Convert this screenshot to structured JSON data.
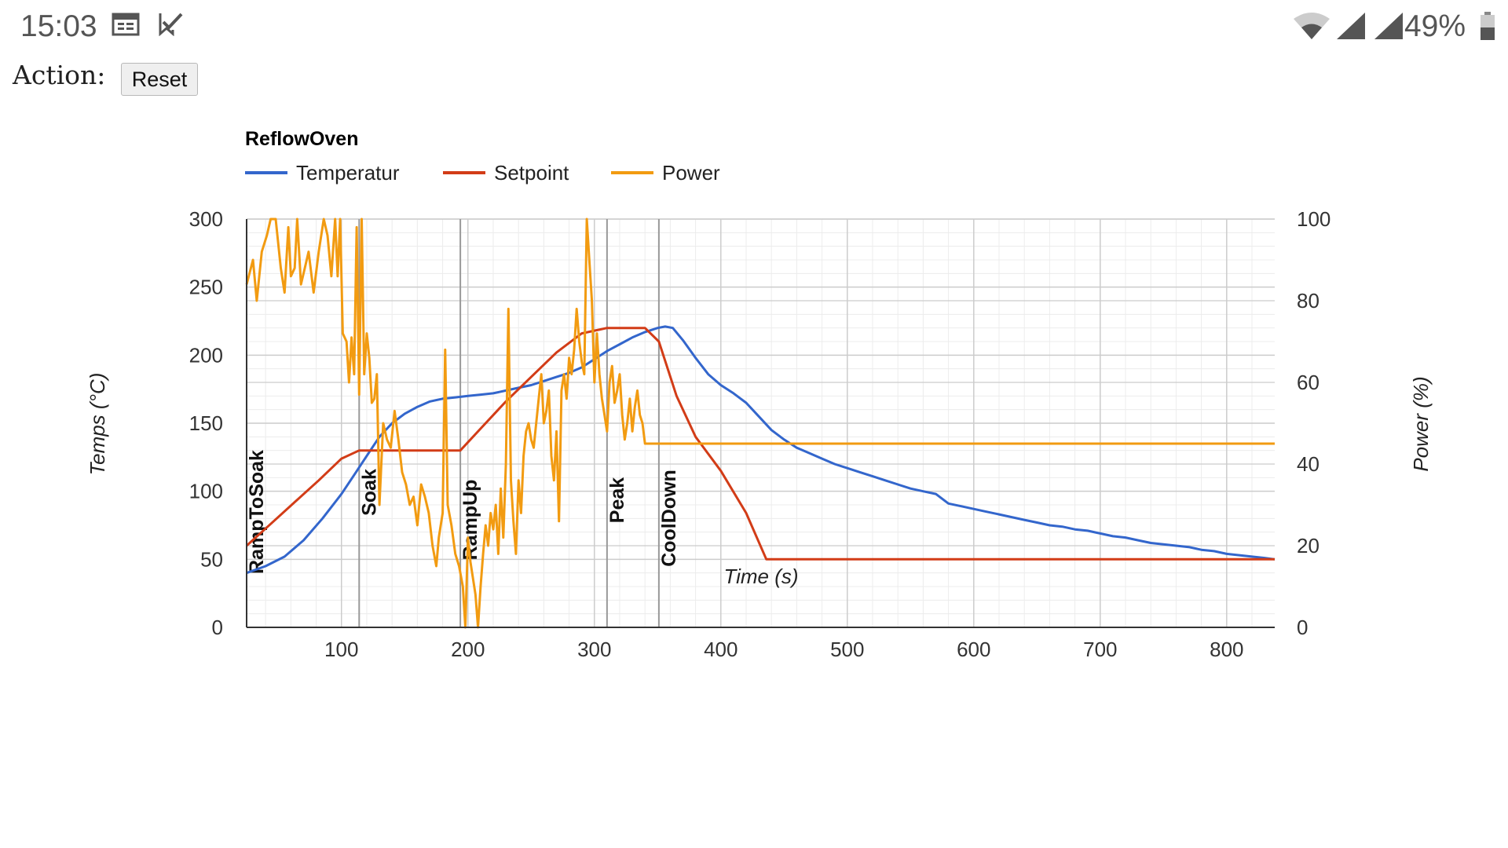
{
  "status_bar": {
    "time": "15:03",
    "battery_percent": "49%",
    "icons": [
      "calendar-icon",
      "task-check-icon",
      "wifi-icon",
      "signal-icon",
      "signal-icon",
      "battery-icon"
    ]
  },
  "action": {
    "label": "Action:",
    "reset_label": "Reset"
  },
  "colors": {
    "temperature": "#3366cc",
    "setpoint": "#d23c17",
    "power": "#f29b11",
    "phase_line": "#999999",
    "grid_major": "#cccccc",
    "grid_minor": "#ececec"
  },
  "chart_data": {
    "type": "line",
    "title": "ReflowOven",
    "xlabel": "Time (s)",
    "ylabel_left": "Temps (°C)",
    "ylabel_right": "Power (%)",
    "xlim": [
      25,
      838
    ],
    "ylim_left": [
      0,
      300
    ],
    "ylim_right": [
      0,
      100
    ],
    "x_ticks": [
      "100",
      "200",
      "300",
      "400",
      "500",
      "600",
      "700",
      "800"
    ],
    "y_ticks_left": [
      "0",
      "50",
      "100",
      "150",
      "200",
      "250",
      "300"
    ],
    "y_ticks_right": [
      "0",
      "20",
      "40",
      "60",
      "80",
      "100"
    ],
    "legend_position": "top-left",
    "grid": true,
    "phases": [
      {
        "label": "RampToSoak",
        "x": 25
      },
      {
        "label": "Soak",
        "x": 114
      },
      {
        "label": "RampUp",
        "x": 194
      },
      {
        "label": "Peak",
        "x": 310
      },
      {
        "label": "CoolDown",
        "x": 351
      }
    ],
    "series": [
      {
        "name": "Temperatur",
        "axis": "left",
        "points": [
          [
            25,
            40
          ],
          [
            40,
            45
          ],
          [
            55,
            52
          ],
          [
            70,
            64
          ],
          [
            85,
            80
          ],
          [
            100,
            98
          ],
          [
            110,
            112
          ],
          [
            120,
            126
          ],
          [
            130,
            140
          ],
          [
            140,
            150
          ],
          [
            150,
            157
          ],
          [
            160,
            162
          ],
          [
            170,
            166
          ],
          [
            180,
            168
          ],
          [
            190,
            169
          ],
          [
            200,
            170
          ],
          [
            210,
            171
          ],
          [
            220,
            172
          ],
          [
            230,
            174
          ],
          [
            240,
            176
          ],
          [
            250,
            178
          ],
          [
            260,
            181
          ],
          [
            270,
            184
          ],
          [
            280,
            187
          ],
          [
            290,
            191
          ],
          [
            300,
            197
          ],
          [
            310,
            203
          ],
          [
            320,
            208
          ],
          [
            330,
            213
          ],
          [
            340,
            217
          ],
          [
            350,
            220
          ],
          [
            356,
            221
          ],
          [
            362,
            220
          ],
          [
            370,
            211
          ],
          [
            380,
            198
          ],
          [
            390,
            186
          ],
          [
            400,
            178
          ],
          [
            410,
            172
          ],
          [
            420,
            165
          ],
          [
            430,
            155
          ],
          [
            440,
            145
          ],
          [
            450,
            138
          ],
          [
            460,
            132
          ],
          [
            470,
            128
          ],
          [
            480,
            124
          ],
          [
            490,
            120
          ],
          [
            500,
            117
          ],
          [
            510,
            114
          ],
          [
            520,
            111
          ],
          [
            530,
            108
          ],
          [
            540,
            105
          ],
          [
            550,
            102
          ],
          [
            560,
            100
          ],
          [
            570,
            98
          ],
          [
            580,
            91
          ],
          [
            590,
            89
          ],
          [
            600,
            87
          ],
          [
            610,
            85
          ],
          [
            620,
            83
          ],
          [
            630,
            81
          ],
          [
            640,
            79
          ],
          [
            650,
            77
          ],
          [
            660,
            75
          ],
          [
            670,
            74
          ],
          [
            680,
            72
          ],
          [
            690,
            71
          ],
          [
            700,
            69
          ],
          [
            710,
            67
          ],
          [
            720,
            66
          ],
          [
            730,
            64
          ],
          [
            740,
            62
          ],
          [
            750,
            61
          ],
          [
            760,
            60
          ],
          [
            770,
            59
          ],
          [
            780,
            57
          ],
          [
            790,
            56
          ],
          [
            800,
            54
          ],
          [
            810,
            53
          ],
          [
            820,
            52
          ],
          [
            830,
            51
          ],
          [
            838,
            50
          ]
        ]
      },
      {
        "name": "Setpoint",
        "axis": "left",
        "points": [
          [
            25,
            60
          ],
          [
            44,
            76
          ],
          [
            63,
            92
          ],
          [
            82,
            108
          ],
          [
            100,
            124
          ],
          [
            114,
            130
          ],
          [
            194,
            130
          ],
          [
            210,
            146
          ],
          [
            230,
            166
          ],
          [
            250,
            184
          ],
          [
            270,
            202
          ],
          [
            290,
            216
          ],
          [
            310,
            220
          ],
          [
            340,
            220
          ],
          [
            351,
            210
          ],
          [
            365,
            170
          ],
          [
            380,
            140
          ],
          [
            400,
            115
          ],
          [
            420,
            84
          ],
          [
            436,
            50
          ],
          [
            838,
            50
          ]
        ]
      },
      {
        "name": "Power",
        "axis": "right",
        "points": [
          [
            25,
            84
          ],
          [
            30,
            90
          ],
          [
            33,
            80
          ],
          [
            37,
            92
          ],
          [
            41,
            96
          ],
          [
            44,
            100
          ],
          [
            48,
            100
          ],
          [
            52,
            88
          ],
          [
            55,
            82
          ],
          [
            58,
            98
          ],
          [
            60,
            86
          ],
          [
            63,
            88
          ],
          [
            65,
            100
          ],
          [
            68,
            84
          ],
          [
            71,
            88
          ],
          [
            74,
            92
          ],
          [
            78,
            82
          ],
          [
            82,
            92
          ],
          [
            86,
            100
          ],
          [
            89,
            96
          ],
          [
            92,
            86
          ],
          [
            95,
            100
          ],
          [
            97,
            86
          ],
          [
            99,
            100
          ],
          [
            101,
            72
          ],
          [
            104,
            70
          ],
          [
            106,
            60
          ],
          [
            108,
            71
          ],
          [
            110,
            62
          ],
          [
            112,
            98
          ],
          [
            114,
            57
          ],
          [
            116,
            100
          ],
          [
            118,
            62
          ],
          [
            120,
            72
          ],
          [
            122,
            66
          ],
          [
            124,
            55
          ],
          [
            126,
            56
          ],
          [
            128,
            62
          ],
          [
            130,
            30
          ],
          [
            133,
            50
          ],
          [
            136,
            46
          ],
          [
            139,
            44
          ],
          [
            142,
            53
          ],
          [
            145,
            46
          ],
          [
            148,
            38
          ],
          [
            151,
            35
          ],
          [
            154,
            30
          ],
          [
            157,
            32
          ],
          [
            160,
            25
          ],
          [
            163,
            35
          ],
          [
            166,
            32
          ],
          [
            169,
            28
          ],
          [
            172,
            20
          ],
          [
            175,
            15
          ],
          [
            177,
            22
          ],
          [
            180,
            28
          ],
          [
            182,
            68
          ],
          [
            184,
            30
          ],
          [
            187,
            25
          ],
          [
            190,
            18
          ],
          [
            193,
            15
          ],
          [
            196,
            10
          ],
          [
            198,
            0
          ],
          [
            200,
            22
          ],
          [
            202,
            16
          ],
          [
            204,
            12
          ],
          [
            206,
            8
          ],
          [
            208,
            0
          ],
          [
            210,
            10
          ],
          [
            212,
            18
          ],
          [
            214,
            25
          ],
          [
            216,
            20
          ],
          [
            218,
            28
          ],
          [
            220,
            24
          ],
          [
            222,
            30
          ],
          [
            224,
            18
          ],
          [
            226,
            34
          ],
          [
            228,
            22
          ],
          [
            230,
            40
          ],
          [
            232,
            78
          ],
          [
            234,
            36
          ],
          [
            236,
            26
          ],
          [
            238,
            18
          ],
          [
            240,
            36
          ],
          [
            242,
            28
          ],
          [
            244,
            42
          ],
          [
            246,
            48
          ],
          [
            248,
            50
          ],
          [
            250,
            46
          ],
          [
            252,
            44
          ],
          [
            254,
            50
          ],
          [
            256,
            56
          ],
          [
            258,
            62
          ],
          [
            260,
            50
          ],
          [
            262,
            53
          ],
          [
            264,
            58
          ],
          [
            266,
            42
          ],
          [
            268,
            36
          ],
          [
            270,
            48
          ],
          [
            272,
            26
          ],
          [
            274,
            58
          ],
          [
            276,
            62
          ],
          [
            278,
            56
          ],
          [
            280,
            66
          ],
          [
            282,
            62
          ],
          [
            284,
            68
          ],
          [
            286,
            78
          ],
          [
            288,
            70
          ],
          [
            290,
            65
          ],
          [
            292,
            62
          ],
          [
            294,
            100
          ],
          [
            296,
            90
          ],
          [
            298,
            80
          ],
          [
            300,
            60
          ],
          [
            302,
            72
          ],
          [
            304,
            62
          ],
          [
            306,
            56
          ],
          [
            308,
            52
          ],
          [
            310,
            48
          ],
          [
            312,
            60
          ],
          [
            314,
            64
          ],
          [
            316,
            55
          ],
          [
            318,
            58
          ],
          [
            320,
            62
          ],
          [
            322,
            52
          ],
          [
            324,
            46
          ],
          [
            326,
            50
          ],
          [
            328,
            56
          ],
          [
            330,
            48
          ],
          [
            332,
            54
          ],
          [
            334,
            58
          ],
          [
            336,
            52
          ],
          [
            338,
            50
          ],
          [
            340,
            45
          ],
          [
            838,
            45
          ]
        ]
      }
    ]
  }
}
